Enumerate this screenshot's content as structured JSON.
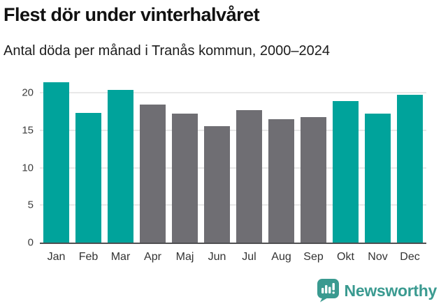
{
  "header": {
    "title": "Flest dör under vinterhalvåret",
    "subtitle": "Antal döda per månad i Tranås kommun, 2000–2024"
  },
  "chart_data": {
    "type": "bar",
    "title": "Flest dör under vinterhalvåret",
    "subtitle": "Antal döda per månad i Tranås kommun, 2000–2024",
    "categories": [
      "Jan",
      "Feb",
      "Mar",
      "Apr",
      "Maj",
      "Jun",
      "Jul",
      "Aug",
      "Sep",
      "Okt",
      "Nov",
      "Dec"
    ],
    "values": [
      21.4,
      17.3,
      20.4,
      18.4,
      17.2,
      15.5,
      17.7,
      16.5,
      16.7,
      18.9,
      17.2,
      19.7
    ],
    "bar_colors": [
      "#00a39b",
      "#00a39b",
      "#00a39b",
      "#6f6e73",
      "#6f6e73",
      "#6f6e73",
      "#6f6e73",
      "#6f6e73",
      "#6f6e73",
      "#00a39b",
      "#00a39b",
      "#00a39b"
    ],
    "highlight_color": "#00a39b",
    "base_color": "#6f6e73",
    "highlighted_months": [
      "Jan",
      "Feb",
      "Mar",
      "Okt",
      "Nov",
      "Dec"
    ],
    "xlabel": "",
    "ylabel": "",
    "y_ticks": [
      0,
      5,
      10,
      15,
      20
    ],
    "ylim": [
      0,
      22
    ],
    "grid": true,
    "legend": "none",
    "gridline_color": "#e8e8e8",
    "axis_line_color": "#4f4f51"
  },
  "footer": {
    "brand": "Newsworthy",
    "brand_color": "#3a9a90",
    "logo_icon": "newsworthy-speech-bubble-chart-icon"
  }
}
